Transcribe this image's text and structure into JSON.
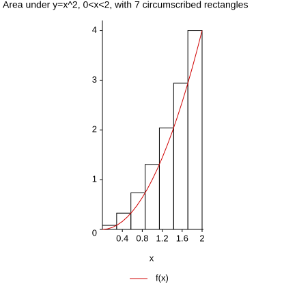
{
  "chart_data": {
    "type": "riemann",
    "title": "Area under y=x^2, 0<x<2, with 7 circumscribed rectangles",
    "x_label": "x",
    "rectangles": {
      "edges": [
        0,
        0.2857,
        0.5714,
        0.8571,
        1.1429,
        1.4286,
        1.7143,
        2
      ],
      "heights": [
        0.0816,
        0.3265,
        0.7347,
        1.3061,
        2.0408,
        2.9388,
        4
      ],
      "color": "#000000"
    },
    "series": [
      {
        "name": "f(x)",
        "color": "#d00000",
        "x": [
          0,
          0.1,
          0.2,
          0.3,
          0.4,
          0.5,
          0.6,
          0.7,
          0.8,
          0.9,
          1,
          1.1,
          1.2,
          1.3,
          1.4,
          1.5,
          1.6,
          1.7,
          1.8,
          1.9,
          2
        ],
        "values": [
          0,
          0.01,
          0.04,
          0.09,
          0.16,
          0.25,
          0.36,
          0.49,
          0.64,
          0.81,
          1,
          1.21,
          1.44,
          1.69,
          1.96,
          2.25,
          2.56,
          2.89,
          3.24,
          3.61,
          4
        ]
      }
    ],
    "xlim": [
      0,
      2
    ],
    "xticks": [
      0.4,
      0.8,
      1.2,
      1.6,
      2
    ],
    "ylim": [
      0,
      4.2
    ],
    "yticks": [
      0,
      1,
      2,
      3,
      4
    ]
  }
}
